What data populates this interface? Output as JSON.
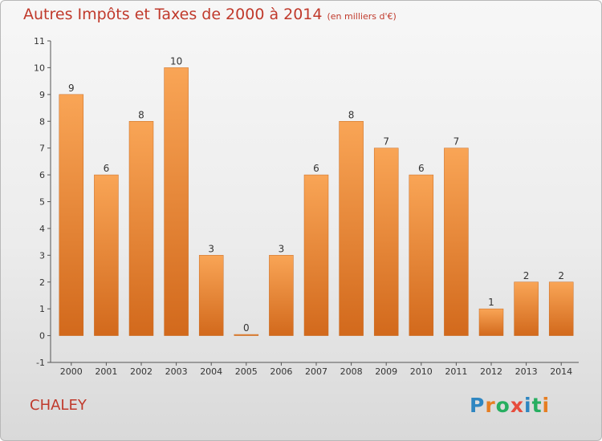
{
  "title": "Autres Impôts et Taxes de 2000 à 2014",
  "subtitle": "(en milliers d'€)",
  "commune": "CHALEY",
  "logo": {
    "text": "Proxiti",
    "letters": [
      {
        "char": "P",
        "color": "#2e86c1"
      },
      {
        "char": "r",
        "color": "#e67e22"
      },
      {
        "char": "o",
        "color": "#27ae60"
      },
      {
        "char": "x",
        "color": "#e74c3c"
      },
      {
        "char": "i",
        "color": "#2e86c1"
      },
      {
        "char": "t",
        "color": "#27ae60"
      },
      {
        "char": "i",
        "color": "#e67e22"
      }
    ]
  },
  "colors": {
    "bar_light": "#f9a556",
    "bar_dark": "#d2691c",
    "axis": "#555555",
    "grid": "#cfcfcf",
    "title": "#c0392b"
  },
  "chart_data": {
    "type": "bar",
    "title": "Autres Impôts et Taxes de 2000 à 2014",
    "xlabel": "",
    "ylabel": "",
    "categories": [
      "2000",
      "2001",
      "2002",
      "2003",
      "2004",
      "2005",
      "2006",
      "2007",
      "2008",
      "2009",
      "2010",
      "2011",
      "2012",
      "2013",
      "2014"
    ],
    "values": [
      9,
      6,
      8,
      10,
      3,
      0,
      3,
      6,
      8,
      7,
      6,
      7,
      1,
      2,
      2
    ],
    "ylim": [
      -1,
      11
    ],
    "yticks": [
      "-1",
      "0",
      "1",
      "2",
      "3",
      "4",
      "5",
      "6",
      "7",
      "8",
      "9",
      "10",
      "11"
    ],
    "grid": false,
    "legend": "none"
  }
}
